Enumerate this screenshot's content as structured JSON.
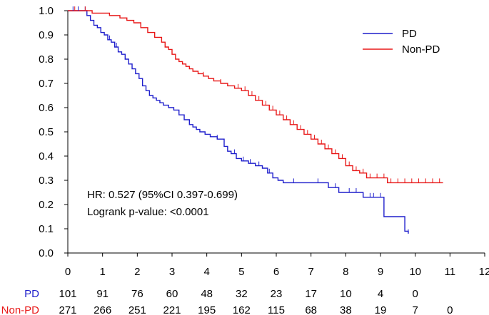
{
  "chart_data": {
    "type": "line",
    "step": true,
    "xlim": [
      0,
      12
    ],
    "ylim": [
      0,
      1.0
    ],
    "xticks": [
      "0",
      "1",
      "2",
      "3",
      "4",
      "5",
      "6",
      "7",
      "8",
      "9",
      "10",
      "11",
      "12"
    ],
    "yticks": [
      "0.0",
      "0.1",
      "0.2",
      "0.3",
      "0.4",
      "0.5",
      "0.6",
      "0.7",
      "0.8",
      "0.9",
      "1.0"
    ],
    "grid": false,
    "legend_position": "top-right",
    "series": [
      {
        "name": "PD",
        "color": "#1f1fcc",
        "x": [
          0,
          0.55,
          0.65,
          0.75,
          0.85,
          0.95,
          1.05,
          1.15,
          1.25,
          1.35,
          1.45,
          1.55,
          1.65,
          1.75,
          1.85,
          1.95,
          2.05,
          2.15,
          2.25,
          2.35,
          2.45,
          2.55,
          2.65,
          2.75,
          2.9,
          3.05,
          3.2,
          3.35,
          3.5,
          3.6,
          3.7,
          3.8,
          3.95,
          4.1,
          4.3,
          4.5,
          4.6,
          4.7,
          4.85,
          5.0,
          5.2,
          5.4,
          5.6,
          5.75,
          5.9,
          6.05,
          6.2,
          7.0,
          7.5,
          7.8,
          8.5,
          9.1,
          9.7,
          9.8
        ],
        "y": [
          1.0,
          0.98,
          0.96,
          0.94,
          0.93,
          0.91,
          0.9,
          0.88,
          0.87,
          0.85,
          0.83,
          0.82,
          0.8,
          0.78,
          0.76,
          0.74,
          0.72,
          0.69,
          0.67,
          0.65,
          0.64,
          0.63,
          0.62,
          0.61,
          0.6,
          0.59,
          0.57,
          0.55,
          0.53,
          0.52,
          0.51,
          0.5,
          0.49,
          0.48,
          0.47,
          0.44,
          0.42,
          0.41,
          0.39,
          0.38,
          0.37,
          0.36,
          0.35,
          0.33,
          0.31,
          0.3,
          0.29,
          0.29,
          0.27,
          0.25,
          0.23,
          0.15,
          0.09,
          0.08
        ],
        "censor_x": [
          0.15,
          0.3,
          0.5,
          1.2,
          1.4,
          4.3,
          4.8,
          5.05,
          5.25,
          5.5,
          5.8,
          6.5,
          7.2,
          7.7,
          8.1,
          8.3,
          8.5,
          8.7,
          8.8,
          9.0,
          9.8
        ]
      },
      {
        "name": "Non-PD",
        "color": "#e81818",
        "x": [
          0,
          0.7,
          1.2,
          1.5,
          1.7,
          1.9,
          2.1,
          2.3,
          2.5,
          2.7,
          2.8,
          2.9,
          3.0,
          3.1,
          3.2,
          3.3,
          3.4,
          3.5,
          3.6,
          3.75,
          3.9,
          4.05,
          4.2,
          4.4,
          4.6,
          4.8,
          5.0,
          5.2,
          5.4,
          5.6,
          5.8,
          6.0,
          6.2,
          6.4,
          6.6,
          6.8,
          7.0,
          7.2,
          7.4,
          7.6,
          7.8,
          8.0,
          8.2,
          8.4,
          8.6,
          8.8,
          9.0,
          9.2,
          10.8
        ],
        "y": [
          1.0,
          0.99,
          0.98,
          0.97,
          0.96,
          0.95,
          0.93,
          0.91,
          0.89,
          0.87,
          0.85,
          0.84,
          0.82,
          0.8,
          0.79,
          0.78,
          0.77,
          0.76,
          0.75,
          0.74,
          0.73,
          0.72,
          0.71,
          0.7,
          0.69,
          0.68,
          0.67,
          0.65,
          0.63,
          0.61,
          0.59,
          0.57,
          0.55,
          0.53,
          0.51,
          0.49,
          0.47,
          0.45,
          0.43,
          0.41,
          0.39,
          0.36,
          0.34,
          0.33,
          0.31,
          0.31,
          0.31,
          0.29,
          0.29
        ],
        "censor_x": [
          0.2,
          0.5,
          3.9,
          4.4,
          4.9,
          5.1,
          5.3,
          5.5,
          5.7,
          5.9,
          6.1,
          6.3,
          6.5,
          6.7,
          6.9,
          7.1,
          7.3,
          7.5,
          7.7,
          7.9,
          8.1,
          8.3,
          8.5,
          8.7,
          8.9,
          9.1,
          9.3,
          9.5,
          9.7,
          9.9,
          10.1,
          10.3,
          10.5,
          10.7
        ]
      }
    ],
    "annotations": [
      "HR: 0.527 (95%CI 0.397-0.699)",
      "Logrank p-value: <0.0001"
    ],
    "risk_table": [
      {
        "label": "PD",
        "color": "#1f1fcc",
        "values": [
          "101",
          "91",
          "76",
          "60",
          "48",
          "32",
          "23",
          "17",
          "10",
          "4",
          "0"
        ]
      },
      {
        "label": "Non-PD",
        "color": "#e81818",
        "values": [
          "271",
          "266",
          "251",
          "221",
          "195",
          "162",
          "115",
          "68",
          "38",
          "19",
          "7",
          "0"
        ]
      }
    ]
  }
}
